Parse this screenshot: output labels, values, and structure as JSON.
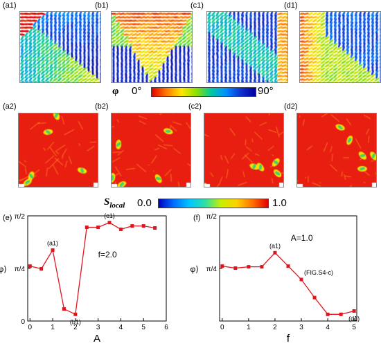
{
  "top_row": {
    "panels": [
      {
        "label": "(a1)",
        "angle_map": "tl-red-diagonal"
      },
      {
        "label": "(b1)",
        "angle_map": "v-shape"
      },
      {
        "label": "(c1)",
        "angle_map": "mostly-blue"
      },
      {
        "label": "(d1)",
        "angle_map": "mixed-green"
      }
    ]
  },
  "phi_colorbar": {
    "symbol": "φ",
    "min_label": "0°",
    "max_label": "90°",
    "colors": [
      "#e00000",
      "#ff7a00",
      "#ffe600",
      "#8ee000",
      "#00c9a0",
      "#0090ff",
      "#1030d0",
      "#00009a"
    ]
  },
  "mid_row": {
    "panels": [
      {
        "label": "(a2)"
      },
      {
        "label": "(b2)"
      },
      {
        "label": "(c2)"
      },
      {
        "label": "(d2)"
      }
    ]
  },
  "s_colorbar": {
    "symbol": "S",
    "subscript": "local",
    "min_label": "0.0",
    "max_label": "1.0"
  },
  "chart_data": [
    {
      "type": "line",
      "panel_label": "(e)",
      "xlabel": "A",
      "ylabel": "⟨φ⟩",
      "annotation": "f=2.0",
      "xlim": [
        -0.1,
        6
      ],
      "ylim": [
        0,
        1.5708
      ],
      "xticks": [
        0,
        1,
        2,
        3,
        4,
        5,
        6
      ],
      "yticks": [
        {
          "value": 0,
          "label": "0"
        },
        {
          "value": 0.7854,
          "label": "π/4"
        },
        {
          "value": 1.5708,
          "label": "π/2"
        }
      ],
      "color": "#e0141e",
      "x": [
        0,
        0.5,
        1,
        1.5,
        2,
        2.5,
        3,
        3.5,
        4,
        4.5,
        5,
        5.5
      ],
      "y": [
        0.82,
        0.78,
        1.06,
        0.18,
        0.1,
        1.4,
        1.4,
        1.47,
        1.37,
        1.42,
        1.42,
        1.39
      ],
      "point_labels": [
        {
          "index": 2,
          "text": "(a1)"
        },
        {
          "index": 4,
          "text": "(b1)"
        },
        {
          "index": 7,
          "text": "(c1)"
        }
      ]
    },
    {
      "type": "line",
      "panel_label": "(f)",
      "xlabel": "f",
      "ylabel": "⟨φ⟩",
      "annotation": "A=1.0",
      "xlim": [
        -0.1,
        5.1
      ],
      "ylim": [
        0,
        1.5708
      ],
      "xticks": [
        0,
        1,
        2,
        3,
        4,
        5
      ],
      "yticks": [
        {
          "value": 0.7854,
          "label": "π/4"
        },
        {
          "value": 1.5708,
          "label": "π/2"
        }
      ],
      "color": "#e0141e",
      "x": [
        0,
        0.5,
        1,
        1.5,
        2,
        2.5,
        3,
        3.5,
        4,
        4.5,
        5
      ],
      "y": [
        0.82,
        0.79,
        0.81,
        0.81,
        1.02,
        0.82,
        0.62,
        0.35,
        0.1,
        0.1,
        0.15
      ],
      "point_labels": [
        {
          "index": 4,
          "text": "(a1)"
        },
        {
          "index": 6,
          "text": "(FIG.S4-c)"
        },
        {
          "index": 10,
          "text": "(d1)"
        }
      ]
    }
  ]
}
